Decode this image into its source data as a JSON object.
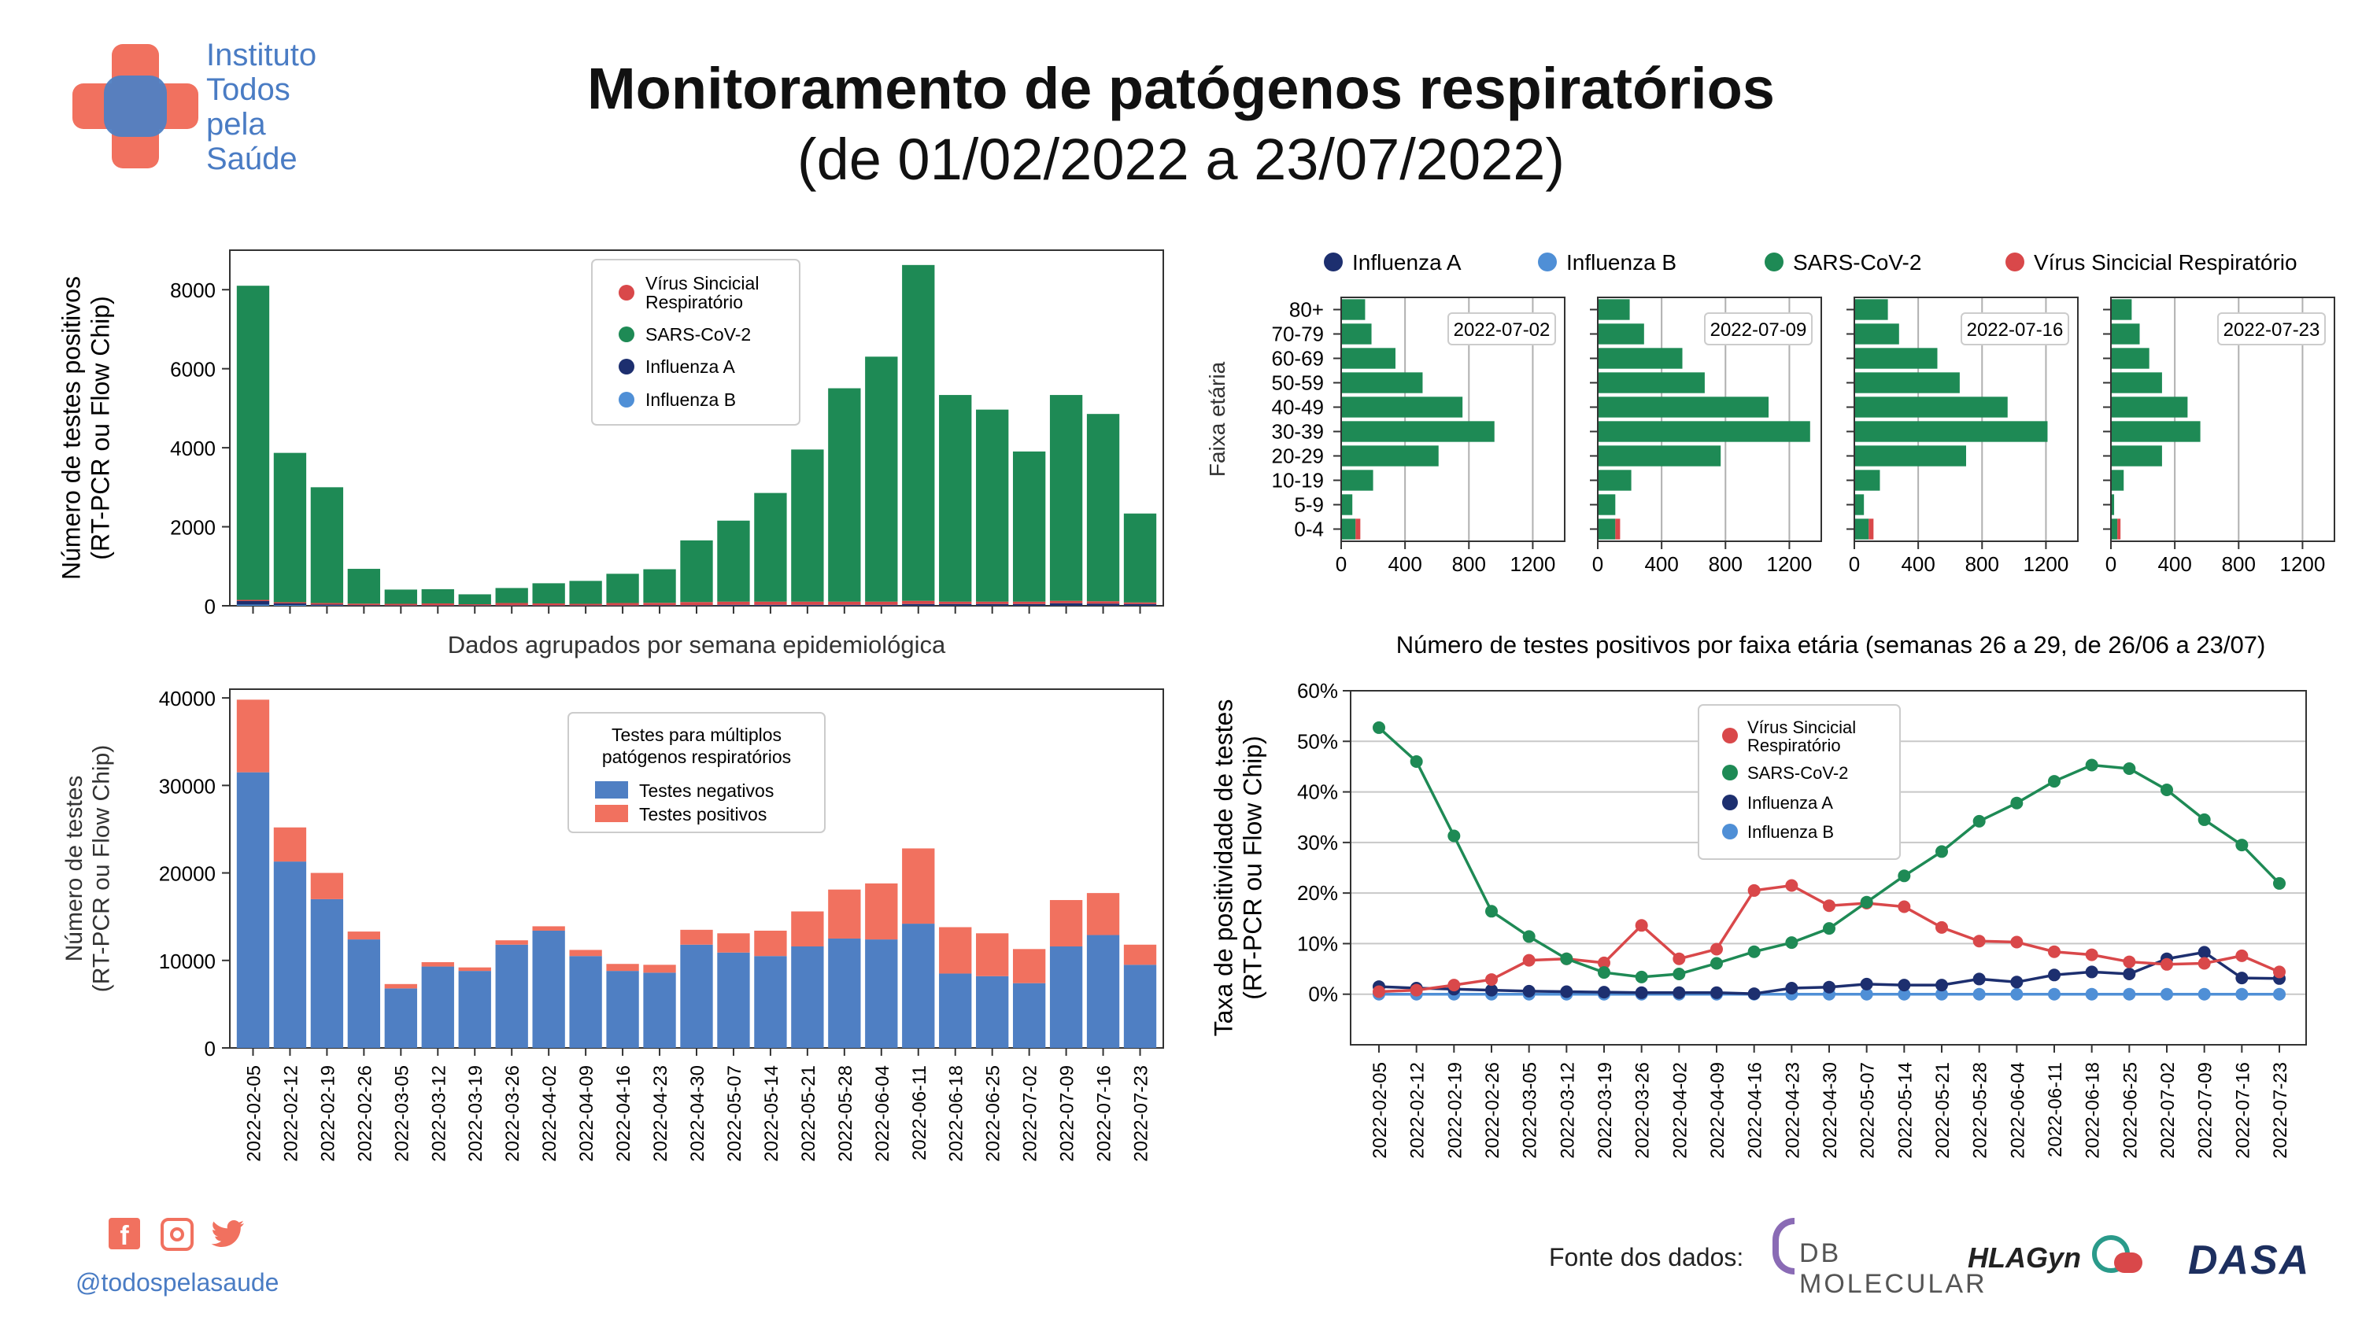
{
  "header": {
    "title": "Monitoramento de patógenos respiratórios",
    "subtitle": "(de 01/02/2022 a 23/07/2022)",
    "logo_lines": [
      "Instituto",
      "Todos",
      "pela",
      "Saúde"
    ]
  },
  "footer": {
    "handle": "@todospelasaude",
    "source_label": "Fonte dos dados:",
    "partners": [
      "DB MOLECULAR",
      "HLAGyn",
      "DASA"
    ],
    "social_icons": [
      "facebook-icon",
      "instagram-icon",
      "twitter-icon"
    ]
  },
  "colors": {
    "rsv": "#d9484a",
    "sars": "#1e8a55",
    "fluA": "#1d2f6f",
    "fluB": "#4f8fd6",
    "neg": "#4f7fc3",
    "pos": "#f1715f"
  },
  "chart_data": [
    {
      "id": "weekly_positives",
      "type": "bar",
      "ylabel": "Número de testes positivos (RT-PCR ou Flow Chip)",
      "xlabel": "Dados agrupados por semana epidemiológica",
      "ylim": [
        0,
        9000
      ],
      "yticks": [
        0,
        2000,
        4000,
        6000,
        8000
      ],
      "legend": [
        "Vírus Sincicial Respiratório",
        "SARS-CoV-2",
        "Influenza A",
        "Influenza B"
      ],
      "categories": [
        "2022-02-05",
        "2022-02-12",
        "2022-02-19",
        "2022-02-26",
        "2022-03-05",
        "2022-03-12",
        "2022-03-19",
        "2022-03-26",
        "2022-04-02",
        "2022-04-09",
        "2022-04-16",
        "2022-04-23",
        "2022-04-30",
        "2022-05-07",
        "2022-05-14",
        "2022-05-21",
        "2022-05-28",
        "2022-06-04",
        "2022-06-11",
        "2022-06-18",
        "2022-06-25",
        "2022-07-02",
        "2022-07-09",
        "2022-07-16",
        "2022-07-23"
      ],
      "series": [
        {
          "name": "Influenza B",
          "values": [
            30,
            20,
            10,
            5,
            5,
            5,
            5,
            5,
            5,
            5,
            5,
            5,
            5,
            5,
            5,
            5,
            5,
            5,
            5,
            5,
            5,
            5,
            5,
            5,
            5
          ]
        },
        {
          "name": "Influenza A",
          "values": [
            90,
            40,
            20,
            10,
            5,
            5,
            5,
            5,
            5,
            5,
            5,
            10,
            10,
            20,
            20,
            20,
            20,
            20,
            40,
            40,
            40,
            40,
            60,
            50,
            40
          ]
        },
        {
          "name": "Vírus Sincicial Respiratório",
          "values": [
            30,
            30,
            40,
            40,
            40,
            50,
            30,
            60,
            50,
            40,
            60,
            60,
            80,
            80,
            80,
            80,
            80,
            80,
            80,
            60,
            60,
            60,
            60,
            60,
            40
          ]
        },
        {
          "name": "SARS-CoV-2",
          "values": [
            7950,
            3780,
            2930,
            880,
            360,
            360,
            250,
            380,
            510,
            580,
            740,
            850,
            1560,
            2050,
            2750,
            3850,
            5400,
            6200,
            8500,
            5230,
            4860,
            3800,
            5210,
            4740,
            2250
          ]
        }
      ]
    },
    {
      "id": "weekly_tests",
      "type": "bar",
      "ylabel": "Número de testes (RT-PCR ou Flow Chip)",
      "ylim": [
        0,
        41000
      ],
      "yticks": [
        0,
        10000,
        20000,
        30000,
        40000
      ],
      "legend_title": "Testes para múltiplos patógenos respiratórios",
      "categories": [
        "2022-02-05",
        "2022-02-12",
        "2022-02-19",
        "2022-02-26",
        "2022-03-05",
        "2022-03-12",
        "2022-03-19",
        "2022-03-26",
        "2022-04-02",
        "2022-04-09",
        "2022-04-16",
        "2022-04-23",
        "2022-04-30",
        "2022-05-07",
        "2022-05-14",
        "2022-05-21",
        "2022-05-28",
        "2022-06-04",
        "2022-06-11",
        "2022-06-18",
        "2022-06-25",
        "2022-07-02",
        "2022-07-09",
        "2022-07-16",
        "2022-07-23"
      ],
      "series": [
        {
          "name": "Testes negativos",
          "values": [
            31500,
            21300,
            17000,
            12400,
            6800,
            9300,
            8800,
            11800,
            13400,
            10500,
            8800,
            8600,
            11800,
            10900,
            10500,
            11600,
            12500,
            12400,
            14200,
            8500,
            8200,
            7400,
            11600,
            12900,
            9500
          ]
        },
        {
          "name": "Testes positivos",
          "values": [
            8300,
            3900,
            3000,
            900,
            500,
            500,
            400,
            500,
            500,
            700,
            800,
            900,
            1700,
            2200,
            2900,
            4000,
            5600,
            6400,
            8600,
            5300,
            4900,
            3900,
            5300,
            4800,
            2300
          ]
        }
      ]
    },
    {
      "id": "age_groups",
      "type": "bar",
      "title": "Número de testes positivos por faixa etária (semanas 26 a 29, de 26/06 a 23/07)",
      "ylabel": "Faixa etária",
      "xlim": [
        0,
        1400
      ],
      "xticks": [
        0,
        400,
        800,
        1200
      ],
      "legend": [
        "Influenza A",
        "Influenza B",
        "SARS-CoV-2",
        "Vírus Sincicial Respiratório"
      ],
      "categories": [
        "80+",
        "70-79",
        "60-69",
        "50-59",
        "40-49",
        "30-39",
        "20-29",
        "10-19",
        "5-9",
        "0-4"
      ],
      "panels": [
        {
          "week": "2022-07-02",
          "sars": [
            150,
            190,
            340,
            510,
            760,
            960,
            610,
            200,
            70,
            90
          ],
          "rsv": [
            0,
            0,
            0,
            0,
            0,
            0,
            0,
            0,
            0,
            30
          ]
        },
        {
          "week": "2022-07-09",
          "sars": [
            200,
            290,
            530,
            670,
            1070,
            1330,
            770,
            210,
            110,
            110
          ],
          "rsv": [
            0,
            0,
            0,
            0,
            0,
            0,
            0,
            0,
            0,
            30
          ]
        },
        {
          "week": "2022-07-16",
          "sars": [
            210,
            280,
            520,
            660,
            960,
            1210,
            700,
            160,
            60,
            90
          ],
          "rsv": [
            0,
            0,
            0,
            0,
            0,
            0,
            0,
            0,
            0,
            30
          ]
        },
        {
          "week": "2022-07-23",
          "sars": [
            130,
            180,
            240,
            320,
            480,
            560,
            320,
            80,
            20,
            40
          ],
          "rsv": [
            0,
            0,
            0,
            0,
            0,
            0,
            0,
            0,
            0,
            20
          ]
        }
      ]
    },
    {
      "id": "positivity",
      "type": "line",
      "ylabel": "Taxa de positividade de testes (RT-PCR ou Flow Chip)",
      "ylim": [
        -10,
        60
      ],
      "yticks": [
        "0%",
        "10%",
        "20%",
        "30%",
        "40%",
        "50%",
        "60%"
      ],
      "legend": [
        "Vírus Sincicial Respiratório",
        "SARS-CoV-2",
        "Influenza A",
        "Influenza B"
      ],
      "x": [
        "2022-02-05",
        "2022-02-12",
        "2022-02-19",
        "2022-02-26",
        "2022-03-05",
        "2022-03-12",
        "2022-03-19",
        "2022-03-26",
        "2022-04-02",
        "2022-04-09",
        "2022-04-16",
        "2022-04-23",
        "2022-04-30",
        "2022-05-07",
        "2022-05-14",
        "2022-05-21",
        "2022-05-28",
        "2022-06-04",
        "2022-06-11",
        "2022-06-18",
        "2022-06-25",
        "2022-07-02",
        "2022-07-09",
        "2022-07-16",
        "2022-07-23"
      ],
      "series": [
        {
          "name": "Vírus Sincicial Respiratório",
          "values": [
            0.5,
            0.8,
            1.8,
            2.9,
            6.7,
            7.0,
            6.2,
            13.6,
            7.0,
            8.9,
            20.5,
            21.5,
            17.5,
            18.0,
            17.3,
            13.2,
            10.5,
            10.3,
            8.4,
            7.8,
            6.4,
            5.9,
            6.1,
            7.6,
            4.4
          ]
        },
        {
          "name": "SARS-CoV-2",
          "values": [
            52.7,
            46.0,
            31.3,
            16.4,
            11.4,
            7.0,
            4.3,
            3.4,
            4.0,
            6.1,
            8.4,
            10.2,
            13.0,
            18.2,
            23.4,
            28.2,
            34.2,
            37.8,
            42.1,
            45.3,
            44.6,
            40.4,
            34.5,
            29.5,
            21.9
          ]
        },
        {
          "name": "Influenza A",
          "values": [
            1.5,
            1.2,
            1.0,
            0.8,
            0.6,
            0.5,
            0.4,
            0.3,
            0.3,
            0.3,
            0.1,
            1.2,
            1.4,
            2.0,
            1.8,
            1.8,
            3.0,
            2.4,
            3.8,
            4.4,
            4.0,
            7.0,
            8.3,
            3.2,
            3.1
          ]
        },
        {
          "name": "Influenza B",
          "values": [
            0,
            0,
            0,
            0,
            0,
            0,
            0,
            0,
            0,
            0,
            0,
            0,
            0,
            0,
            0,
            0,
            0,
            0,
            0,
            0,
            0,
            0,
            0,
            0,
            0
          ]
        }
      ]
    }
  ]
}
